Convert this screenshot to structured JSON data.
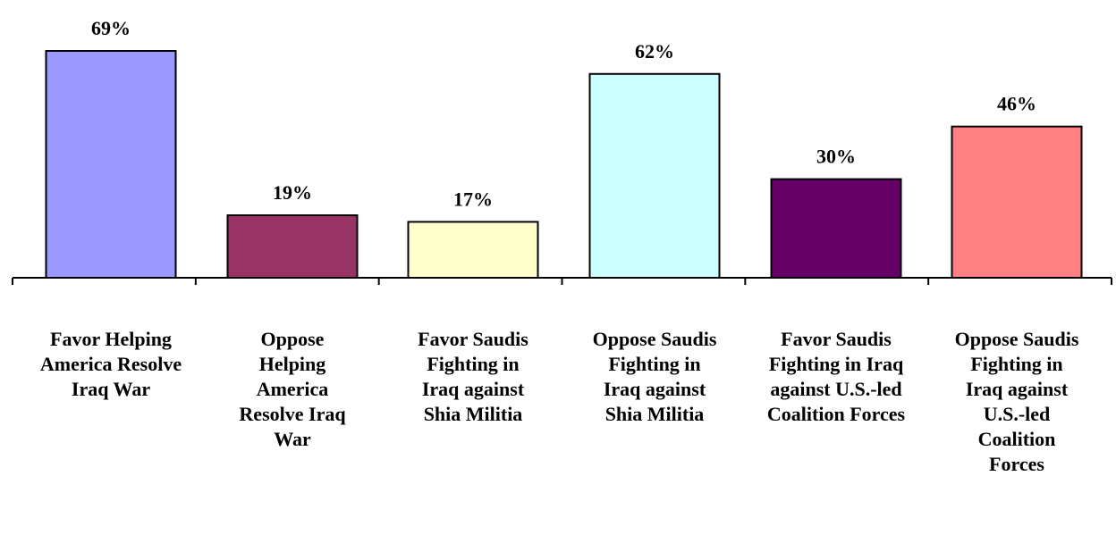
{
  "chart_data": {
    "type": "bar",
    "categories": [
      "Favor Helping America Resolve Iraq War",
      "Oppose Helping America Resolve Iraq War",
      "Favor Saudis Fighting in Iraq against Shia Militia",
      "Oppose Saudis Fighting in Iraq against Shia Militia",
      "Favor Saudis Fighting in Iraq against U.S.-led Coalition Forces",
      "Oppose Saudis Fighting in Iraq against U.S.-led Coalition Forces"
    ],
    "values": [
      69,
      19,
      17,
      62,
      30,
      46
    ],
    "value_labels": [
      "69%",
      "19%",
      "17%",
      "62%",
      "30%",
      "46%"
    ],
    "colors": [
      "#9999ff",
      "#993366",
      "#ffffcc",
      "#ccffff",
      "#660066",
      "#ff8080"
    ],
    "ylim": [
      0,
      69
    ],
    "title": "",
    "xlabel": "",
    "ylabel": "",
    "grid": false,
    "legend": "none"
  }
}
